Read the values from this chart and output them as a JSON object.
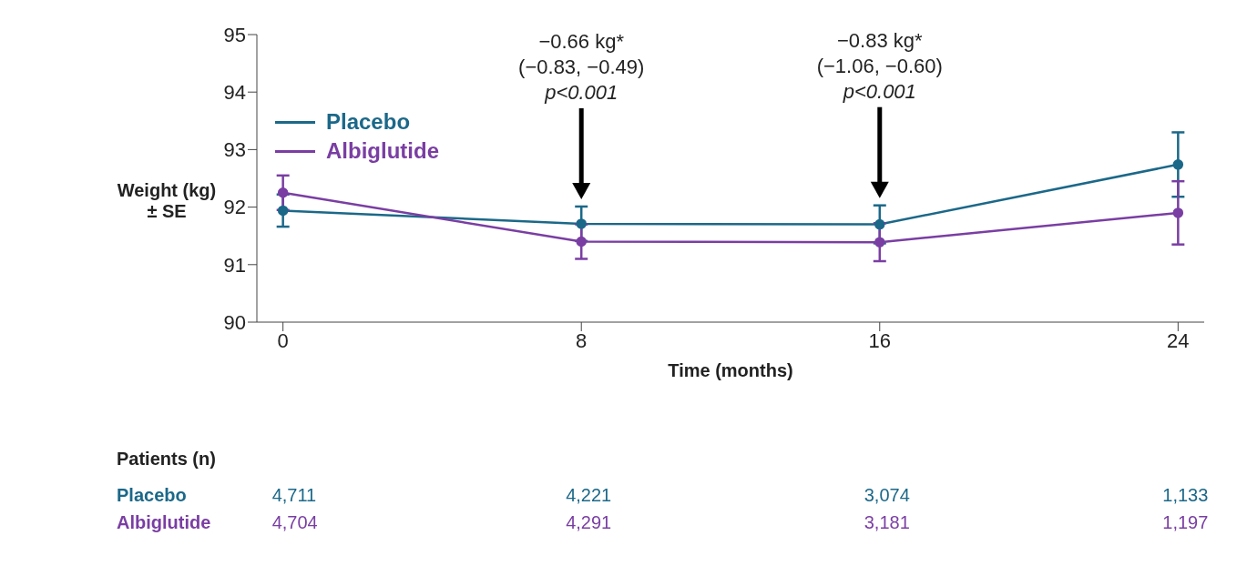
{
  "chart_data": {
    "type": "line",
    "ylabel": "Weight (kg)\n± SE",
    "xlabel": "Time (months)",
    "x": [
      0,
      8,
      16,
      24
    ],
    "xlim": [
      -0.7,
      24.7
    ],
    "xticks": [
      0,
      8,
      16,
      24
    ],
    "ylim": [
      90,
      95
    ],
    "yticks": [
      90,
      91,
      92,
      93,
      94,
      95
    ],
    "series": [
      {
        "name": "Placebo",
        "color": "#1b6889",
        "values": [
          91.94,
          91.71,
          91.7,
          92.74
        ],
        "errors": [
          0.28,
          0.3,
          0.33,
          0.56
        ]
      },
      {
        "name": "Albiglutide",
        "color": "#7a3ea3",
        "values": [
          92.25,
          91.4,
          91.39,
          91.9
        ],
        "errors": [
          0.3,
          0.3,
          0.33,
          0.55
        ]
      }
    ],
    "marker": "circle",
    "line_style": "solid",
    "legend": "top left",
    "grid": false,
    "annotations": [
      "−0.66 kg*\n(−0.83, −0.49)\np<0.001",
      "−0.83 kg*\n(−1.06, −0.60)\np<0.001",
      "Patients (n)",
      "Placebo",
      "4,711",
      "4,221",
      "3,074",
      "1,133",
      "Albiglutide",
      "4,704",
      "4,291",
      "3,181",
      "1,197"
    ]
  }
}
